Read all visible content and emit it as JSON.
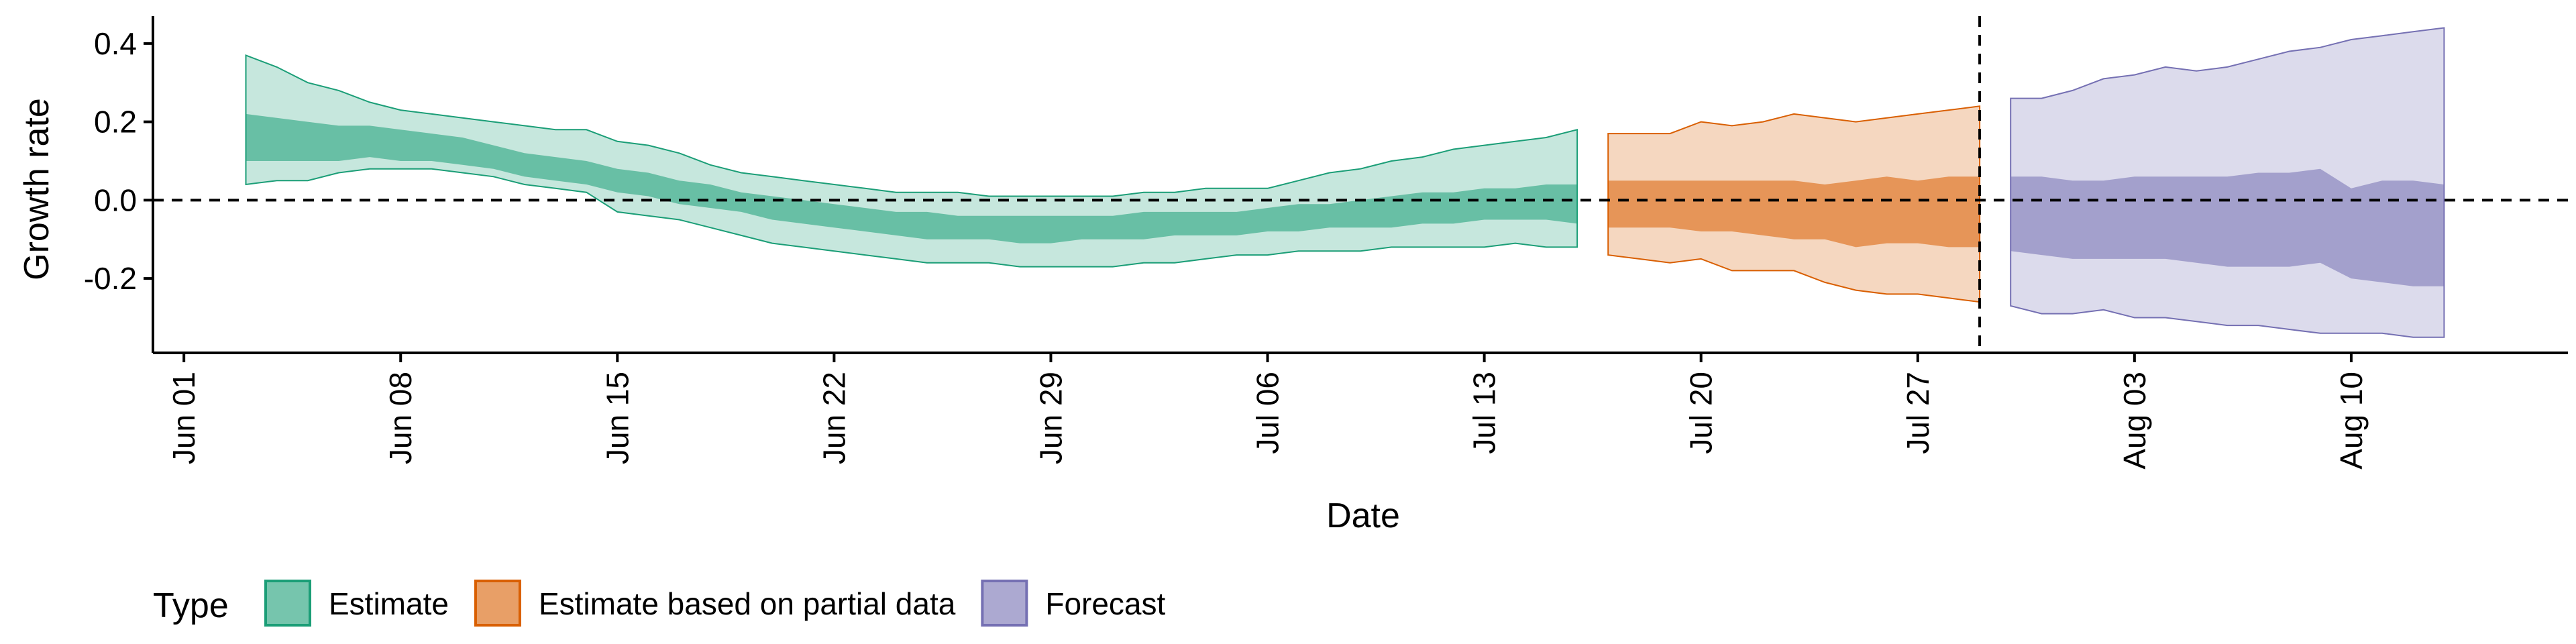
{
  "chart_data": {
    "type": "area",
    "xlabel": "Date",
    "ylabel": "Growth rate",
    "x_tick_labels": [
      "Jun 01",
      "Jun 08",
      "Jun 15",
      "Jun 22",
      "Jun 29",
      "Jul 06",
      "Jul 13",
      "Jul 20",
      "Jul 27",
      "Aug 03",
      "Aug 10"
    ],
    "x_tick_dates": [
      "2020-06-01",
      "2020-06-08",
      "2020-06-15",
      "2020-06-22",
      "2020-06-29",
      "2020-07-06",
      "2020-07-13",
      "2020-07-20",
      "2020-07-27",
      "2020-08-03",
      "2020-08-10"
    ],
    "xlim": [
      "2020-05-31",
      "2020-08-17"
    ],
    "y_ticks": [
      -0.2,
      0.0,
      0.2,
      0.4
    ],
    "y_tick_labels": [
      "-0.2",
      "0.0",
      "0.2",
      "0.4"
    ],
    "ylim": [
      -0.39,
      0.47
    ],
    "reference_lines": {
      "horizontal_y": 0.0,
      "vertical_date": "2020-07-29",
      "style": "dashed"
    },
    "grid": false,
    "legend": {
      "title": "Type",
      "position": "bottom-left",
      "entries": [
        {
          "label": "Estimate",
          "color": "#1b9e77"
        },
        {
          "label": "Estimate based on partial data",
          "color": "#d95f02"
        },
        {
          "label": "Forecast",
          "color": "#7570b3"
        }
      ]
    },
    "series": [
      {
        "name": "Estimate",
        "color": "#1b9e77",
        "x": [
          "2020-06-03",
          "2020-06-04",
          "2020-06-05",
          "2020-06-06",
          "2020-06-07",
          "2020-06-08",
          "2020-06-09",
          "2020-06-10",
          "2020-06-11",
          "2020-06-12",
          "2020-06-13",
          "2020-06-14",
          "2020-06-15",
          "2020-06-16",
          "2020-06-17",
          "2020-06-18",
          "2020-06-19",
          "2020-06-20",
          "2020-06-21",
          "2020-06-22",
          "2020-06-23",
          "2020-06-24",
          "2020-06-25",
          "2020-06-26",
          "2020-06-27",
          "2020-06-28",
          "2020-06-29",
          "2020-06-30",
          "2020-07-01",
          "2020-07-02",
          "2020-07-03",
          "2020-07-04",
          "2020-07-05",
          "2020-07-06",
          "2020-07-07",
          "2020-07-08",
          "2020-07-09",
          "2020-07-10",
          "2020-07-11",
          "2020-07-12",
          "2020-07-13",
          "2020-07-14",
          "2020-07-15",
          "2020-07-16"
        ],
        "lower_90": [
          0.04,
          0.05,
          0.05,
          0.07,
          0.08,
          0.08,
          0.08,
          0.07,
          0.06,
          0.04,
          0.03,
          0.02,
          -0.03,
          -0.04,
          -0.05,
          -0.07,
          -0.09,
          -0.11,
          -0.12,
          -0.13,
          -0.14,
          -0.15,
          -0.16,
          -0.16,
          -0.16,
          -0.17,
          -0.17,
          -0.17,
          -0.17,
          -0.16,
          -0.16,
          -0.15,
          -0.14,
          -0.14,
          -0.13,
          -0.13,
          -0.13,
          -0.12,
          -0.12,
          -0.12,
          -0.12,
          -0.11,
          -0.12,
          -0.12
        ],
        "lower_50": [
          0.1,
          0.1,
          0.1,
          0.1,
          0.11,
          0.1,
          0.1,
          0.09,
          0.08,
          0.06,
          0.05,
          0.04,
          0.02,
          0.01,
          -0.01,
          -0.02,
          -0.03,
          -0.05,
          -0.06,
          -0.07,
          -0.08,
          -0.09,
          -0.1,
          -0.1,
          -0.1,
          -0.11,
          -0.11,
          -0.1,
          -0.1,
          -0.1,
          -0.09,
          -0.09,
          -0.09,
          -0.08,
          -0.08,
          -0.07,
          -0.07,
          -0.07,
          -0.06,
          -0.06,
          -0.05,
          -0.05,
          -0.05,
          -0.06
        ],
        "upper_50": [
          0.22,
          0.21,
          0.2,
          0.19,
          0.19,
          0.18,
          0.17,
          0.16,
          0.14,
          0.12,
          0.11,
          0.1,
          0.08,
          0.07,
          0.05,
          0.04,
          0.02,
          0.01,
          0.0,
          -0.01,
          -0.02,
          -0.03,
          -0.03,
          -0.04,
          -0.04,
          -0.04,
          -0.04,
          -0.04,
          -0.04,
          -0.03,
          -0.03,
          -0.03,
          -0.03,
          -0.02,
          -0.01,
          -0.01,
          0.0,
          0.01,
          0.02,
          0.02,
          0.03,
          0.03,
          0.04,
          0.04
        ],
        "upper_90": [
          0.37,
          0.34,
          0.3,
          0.28,
          0.25,
          0.23,
          0.22,
          0.21,
          0.2,
          0.19,
          0.18,
          0.18,
          0.15,
          0.14,
          0.12,
          0.09,
          0.07,
          0.06,
          0.05,
          0.04,
          0.03,
          0.02,
          0.02,
          0.02,
          0.01,
          0.01,
          0.01,
          0.01,
          0.01,
          0.02,
          0.02,
          0.03,
          0.03,
          0.03,
          0.05,
          0.07,
          0.08,
          0.1,
          0.11,
          0.13,
          0.14,
          0.15,
          0.16,
          0.18
        ]
      },
      {
        "name": "Estimate based on partial data",
        "color": "#d95f02",
        "x": [
          "2020-07-17",
          "2020-07-18",
          "2020-07-19",
          "2020-07-20",
          "2020-07-21",
          "2020-07-22",
          "2020-07-23",
          "2020-07-24",
          "2020-07-25",
          "2020-07-26",
          "2020-07-27",
          "2020-07-28",
          "2020-07-29"
        ],
        "lower_90": [
          -0.14,
          -0.15,
          -0.16,
          -0.15,
          -0.18,
          -0.18,
          -0.18,
          -0.21,
          -0.23,
          -0.24,
          -0.24,
          -0.25,
          -0.26
        ],
        "lower_50": [
          -0.07,
          -0.07,
          -0.07,
          -0.08,
          -0.08,
          -0.09,
          -0.1,
          -0.1,
          -0.12,
          -0.11,
          -0.11,
          -0.12,
          -0.12
        ],
        "upper_50": [
          0.05,
          0.05,
          0.05,
          0.05,
          0.05,
          0.05,
          0.05,
          0.04,
          0.05,
          0.06,
          0.05,
          0.06,
          0.06
        ],
        "upper_90": [
          0.17,
          0.17,
          0.17,
          0.2,
          0.19,
          0.2,
          0.22,
          0.21,
          0.2,
          0.21,
          0.22,
          0.23,
          0.24
        ]
      },
      {
        "name": "Forecast",
        "color": "#7570b3",
        "x": [
          "2020-07-30",
          "2020-07-31",
          "2020-08-01",
          "2020-08-02",
          "2020-08-03",
          "2020-08-04",
          "2020-08-05",
          "2020-08-06",
          "2020-08-07",
          "2020-08-08",
          "2020-08-09",
          "2020-08-10",
          "2020-08-11",
          "2020-08-12",
          "2020-08-13"
        ],
        "lower_90": [
          -0.27,
          -0.29,
          -0.29,
          -0.28,
          -0.3,
          -0.3,
          -0.31,
          -0.32,
          -0.32,
          -0.33,
          -0.34,
          -0.34,
          -0.34,
          -0.35,
          -0.35
        ],
        "lower_50": [
          -0.13,
          -0.14,
          -0.15,
          -0.15,
          -0.15,
          -0.15,
          -0.16,
          -0.17,
          -0.17,
          -0.17,
          -0.16,
          -0.2,
          -0.21,
          -0.22,
          -0.22
        ],
        "upper_50": [
          0.06,
          0.06,
          0.05,
          0.05,
          0.06,
          0.06,
          0.06,
          0.06,
          0.07,
          0.07,
          0.08,
          0.03,
          0.05,
          0.05,
          0.04
        ],
        "upper_90": [
          0.26,
          0.26,
          0.28,
          0.31,
          0.32,
          0.34,
          0.33,
          0.34,
          0.36,
          0.38,
          0.39,
          0.41,
          0.42,
          0.43,
          0.44
        ]
      }
    ]
  }
}
